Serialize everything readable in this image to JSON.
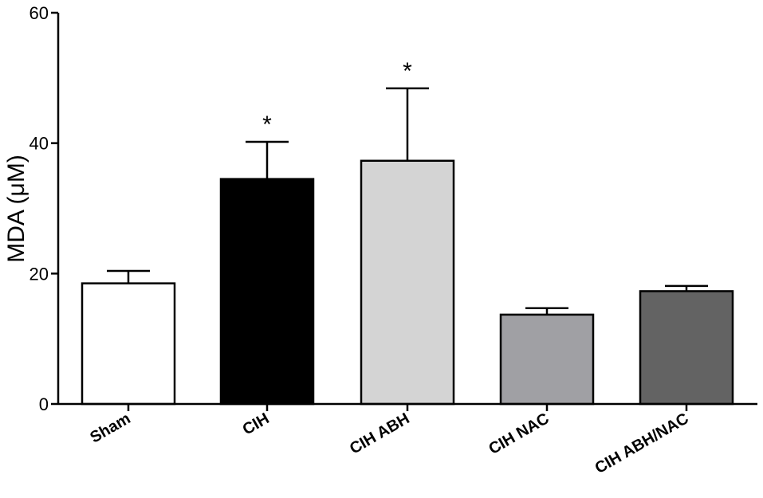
{
  "chart_data": {
    "type": "bar",
    "title": "",
    "xlabel": "",
    "ylabel": "MDA (μM)",
    "ylim": [
      0,
      60
    ],
    "yticks": [
      0,
      20,
      40,
      60
    ],
    "grid": false,
    "legend": "none",
    "categories": [
      "Sham",
      "CIH",
      "CIH ABH",
      "CIH NAC",
      "CIH ABH/NAC"
    ],
    "values": [
      18.5,
      34.5,
      37.3,
      13.7,
      17.3
    ],
    "errors": [
      1.9,
      5.7,
      11.1,
      1.0,
      0.8
    ],
    "significance": [
      "",
      "*",
      "*",
      "",
      ""
    ],
    "colors": [
      "#ffffff",
      "#000000",
      "#d4d4d4",
      "#a0a0a4",
      "#636363"
    ],
    "edge_color": "#000000"
  }
}
